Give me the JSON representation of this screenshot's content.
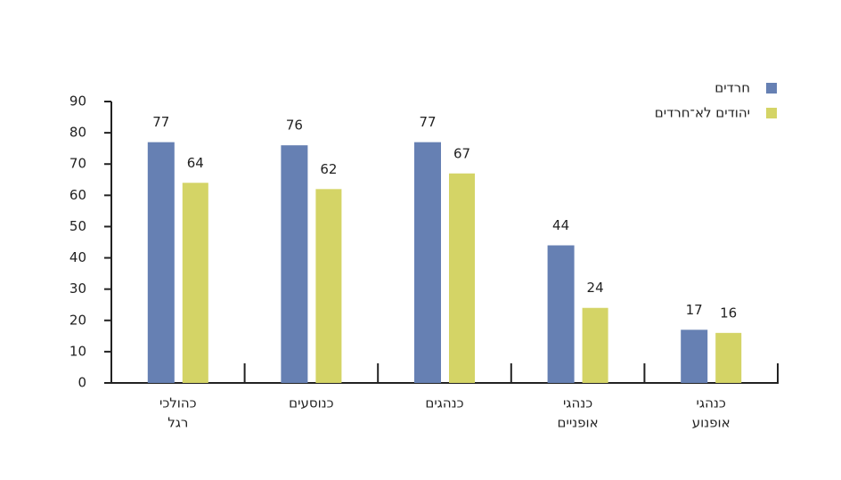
{
  "chart_data": {
    "type": "bar",
    "categories": [
      [
        "כהולכי",
        "רגל"
      ],
      [
        "כנוסעים"
      ],
      [
        "כנהגים"
      ],
      [
        "כנהגי",
        "אופניים"
      ],
      [
        "כנהגי",
        "אופנוע"
      ]
    ],
    "series": [
      {
        "name": "חרדים",
        "color": "#6680b3",
        "values": [
          77,
          76,
          77,
          44,
          17
        ]
      },
      {
        "name": "יהודים לא־חרדים",
        "color": "#d4d466",
        "values": [
          64,
          62,
          67,
          24,
          16
        ]
      }
    ],
    "ylim": [
      0,
      90
    ],
    "yticks": [
      0,
      10,
      20,
      30,
      40,
      50,
      60,
      70,
      80,
      90
    ],
    "grid": false,
    "legend": "top-right"
  }
}
